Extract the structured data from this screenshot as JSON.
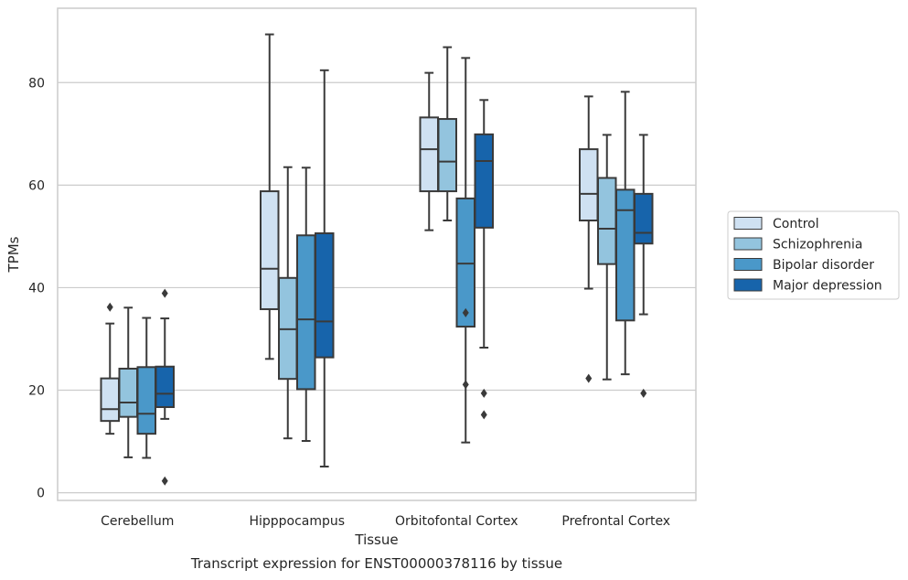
{
  "caption": "Transcript expression for ENST00000378116 by tissue",
  "colors": {
    "Control": "#cfe1f2",
    "Schizophrenia": "#93c4de",
    "Bipolar disorder": "#4a98c9",
    "Major depression": "#1764ab",
    "grid": "#cccccc",
    "line": "#3a3a3a"
  },
  "chart_data": {
    "type": "box",
    "title": "",
    "xlabel": "Tissue",
    "ylabel": "TPMs",
    "ylim": [
      -1.5,
      94.5
    ],
    "yticks": [
      0,
      20,
      40,
      60,
      80
    ],
    "grid": "horizontal",
    "legend_position": "right",
    "categories": [
      "Cerebellum",
      "Hipppocampus",
      "Orbitofontal Cortex",
      "Prefrontal Cortex"
    ],
    "series": [
      {
        "name": "Control",
        "boxes": [
          {
            "whislo": 11.5,
            "q1": 14.0,
            "med": 16.3,
            "q3": 22.3,
            "whishi": 33.0,
            "fliers": [
              36.2
            ]
          },
          {
            "whislo": 26.1,
            "q1": 35.8,
            "med": 43.7,
            "q3": 58.8,
            "whishi": 89.4,
            "fliers": []
          },
          {
            "whislo": 51.2,
            "q1": 58.8,
            "med": 67.0,
            "q3": 73.2,
            "whishi": 81.9,
            "fliers": []
          },
          {
            "whislo": 39.8,
            "q1": 53.1,
            "med": 58.3,
            "q3": 67.0,
            "whishi": 77.3,
            "fliers": [
              22.3
            ]
          }
        ]
      },
      {
        "name": "Schizophrenia",
        "boxes": [
          {
            "whislo": 6.9,
            "q1": 14.8,
            "med": 17.6,
            "q3": 24.2,
            "whishi": 36.1,
            "fliers": []
          },
          {
            "whislo": 10.6,
            "q1": 22.2,
            "med": 31.9,
            "q3": 41.9,
            "whishi": 63.5,
            "fliers": []
          },
          {
            "whislo": 53.1,
            "q1": 58.8,
            "med": 64.6,
            "q3": 72.9,
            "whishi": 86.9,
            "fliers": []
          },
          {
            "whislo": 22.1,
            "q1": 44.6,
            "med": 51.5,
            "q3": 61.4,
            "whishi": 69.8,
            "fliers": []
          }
        ]
      },
      {
        "name": "Bipolar disorder",
        "boxes": [
          {
            "whislo": 6.8,
            "q1": 11.5,
            "med": 15.4,
            "q3": 24.5,
            "whishi": 34.1,
            "fliers": []
          },
          {
            "whislo": 10.1,
            "q1": 20.2,
            "med": 33.8,
            "q3": 50.2,
            "whishi": 63.4,
            "fliers": []
          },
          {
            "whislo": 9.8,
            "q1": 32.4,
            "med": 44.7,
            "q3": 57.4,
            "whishi": 84.8,
            "fliers": [
              35.1,
              21.1
            ]
          },
          {
            "whislo": 23.1,
            "q1": 33.6,
            "med": 55.1,
            "q3": 59.1,
            "whishi": 78.2,
            "fliers": []
          }
        ]
      },
      {
        "name": "Major depression",
        "boxes": [
          {
            "whislo": 14.4,
            "q1": 16.7,
            "med": 19.3,
            "q3": 24.6,
            "whishi": 34.0,
            "fliers": [
              38.9,
              2.3
            ]
          },
          {
            "whislo": 5.1,
            "q1": 26.4,
            "med": 33.4,
            "q3": 50.6,
            "whishi": 82.4,
            "fliers": []
          },
          {
            "whislo": 28.3,
            "q1": 51.7,
            "med": 64.7,
            "q3": 69.9,
            "whishi": 76.6,
            "fliers": [
              19.4,
              15.2
            ]
          },
          {
            "whislo": 34.8,
            "q1": 48.6,
            "med": 50.7,
            "q3": 58.3,
            "whishi": 69.8,
            "fliers": [
              19.4
            ]
          }
        ]
      }
    ]
  }
}
